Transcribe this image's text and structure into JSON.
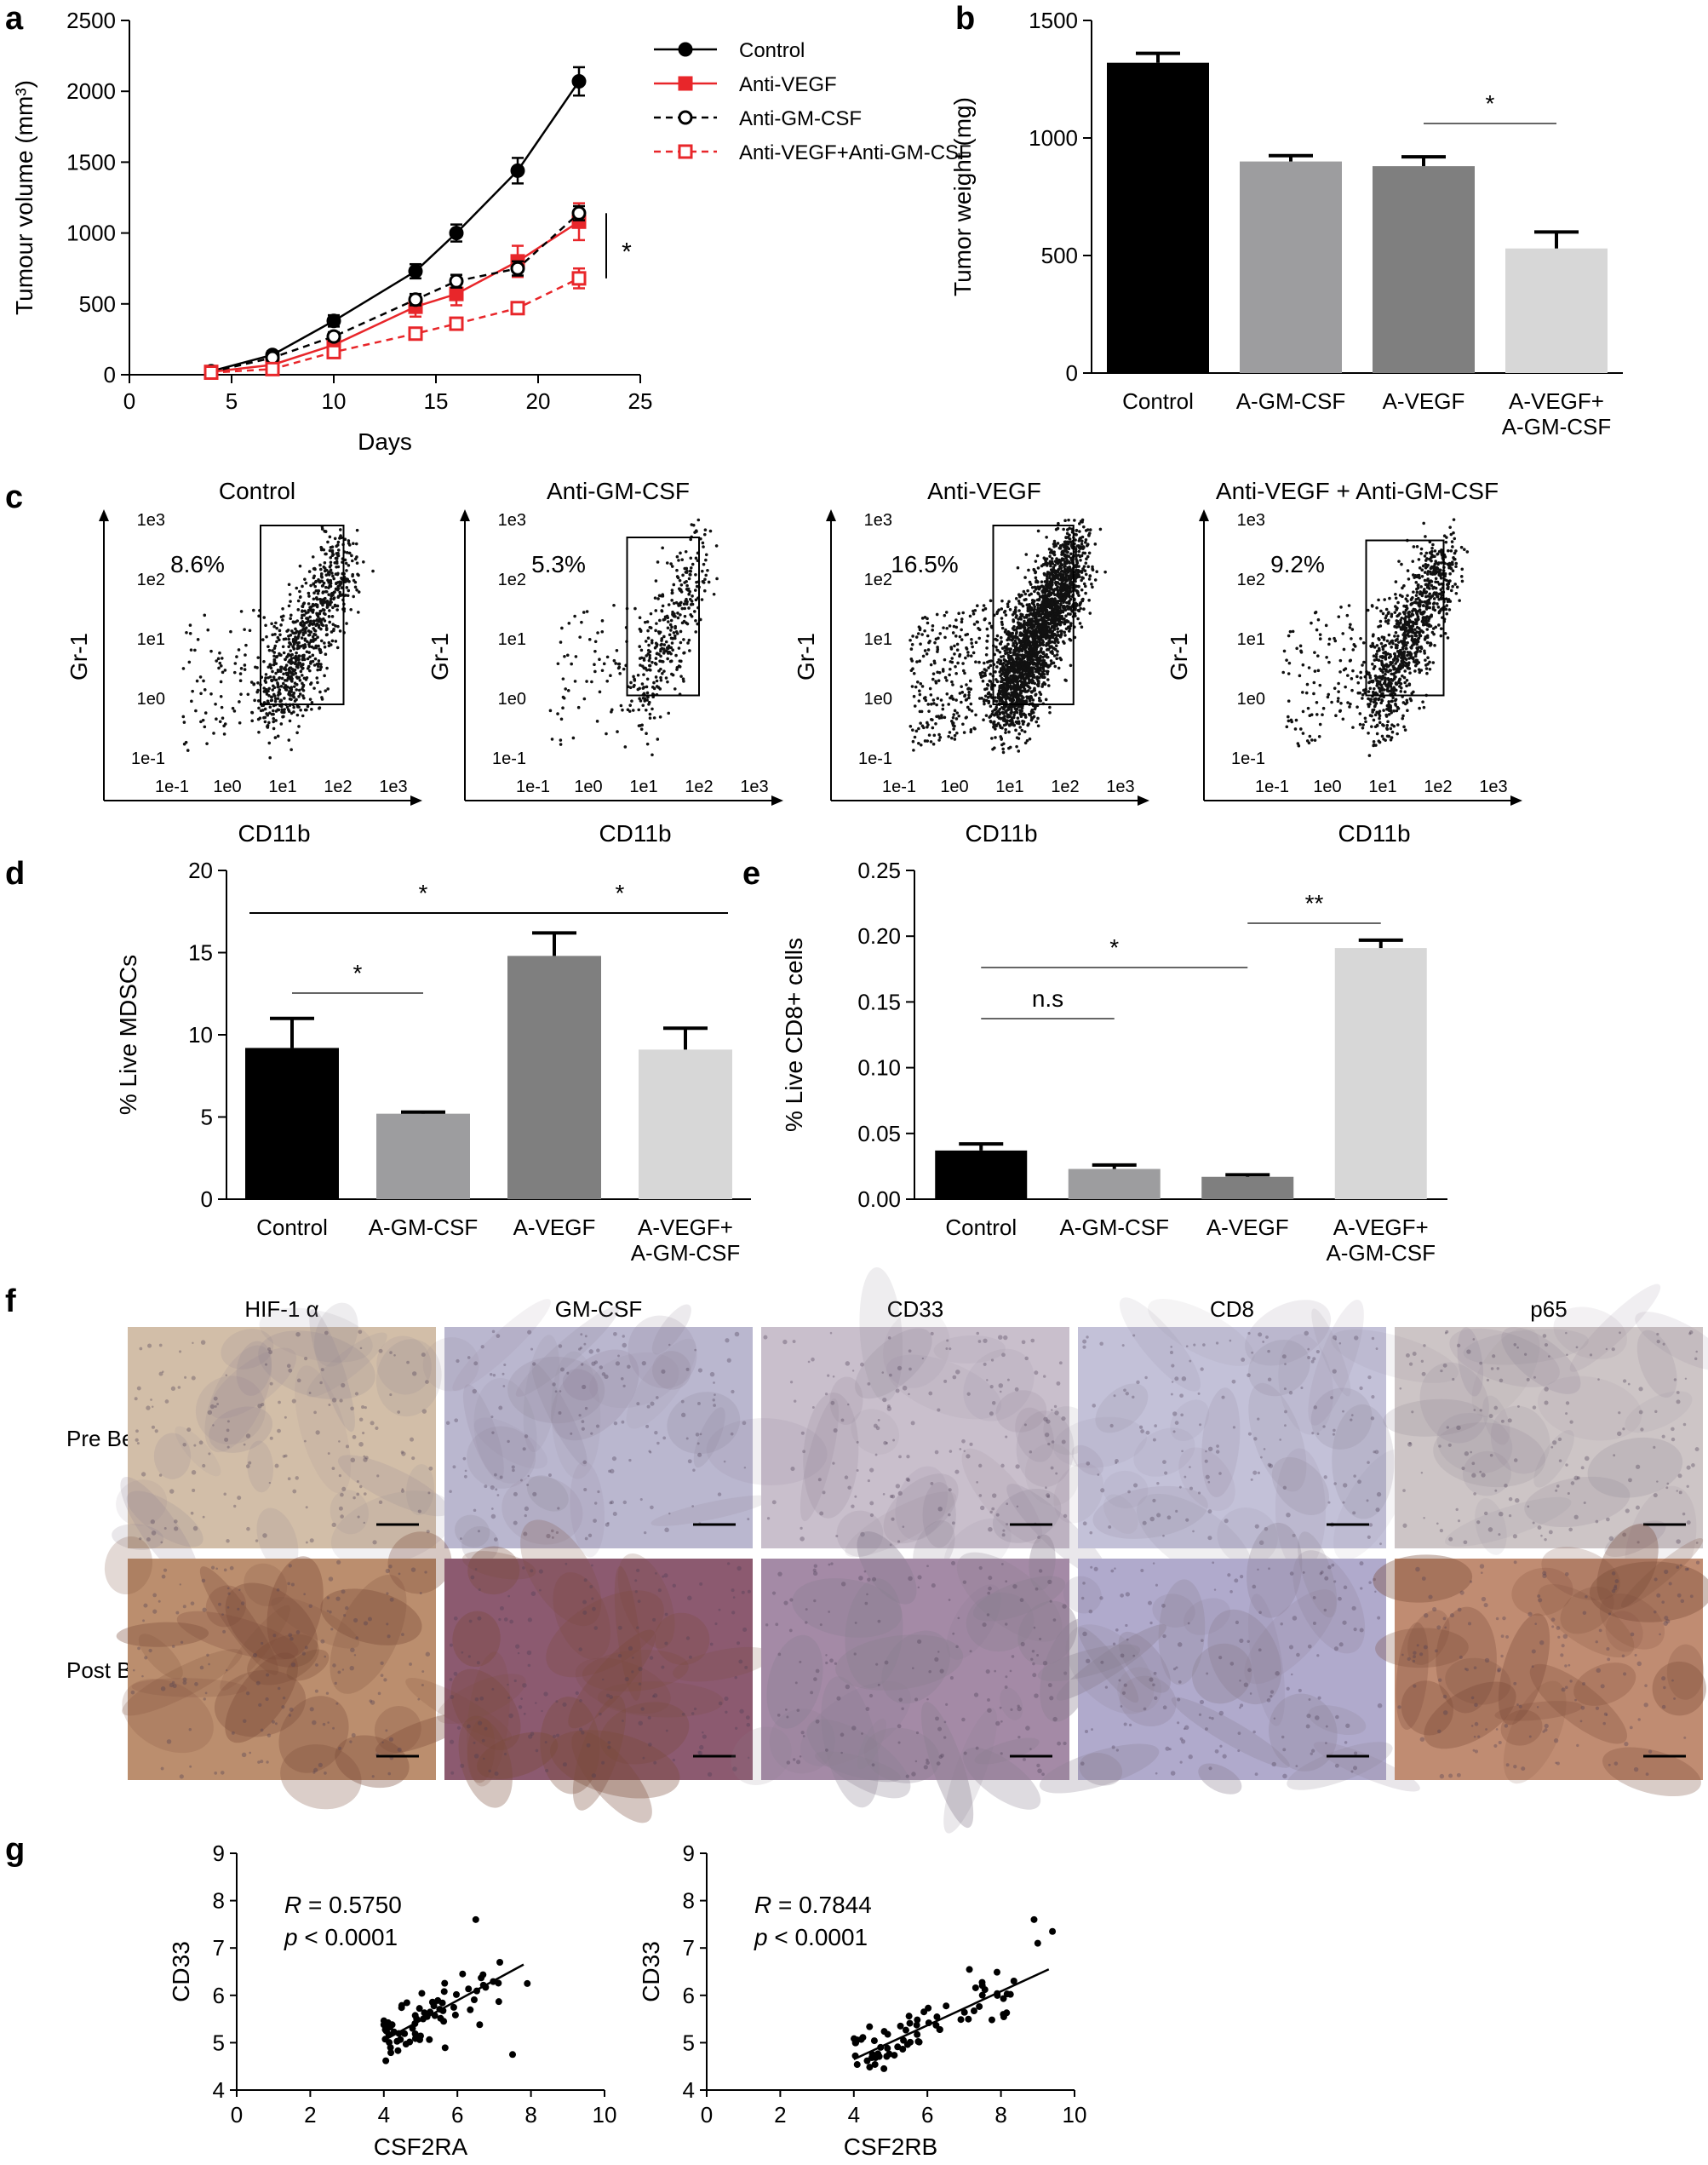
{
  "panel_labels": [
    "a",
    "b",
    "c",
    "d",
    "e",
    "f",
    "g"
  ],
  "chart_data": [
    {
      "id": "a",
      "type": "line",
      "xlabel": "Days",
      "ylabel": "Tumour volume (mm³)",
      "xlim": [
        0,
        25
      ],
      "ylim": [
        0,
        2500
      ],
      "xticks": [
        "0",
        "5",
        "10",
        "15",
        "20",
        "25"
      ],
      "yticks": [
        "0",
        "500",
        "1000",
        "1500",
        "2000",
        "2500"
      ],
      "legend_position": "top-right",
      "x": [
        4,
        7,
        10,
        14,
        16,
        19,
        22
      ],
      "series": [
        {
          "name": "Control",
          "values": [
            25,
            140,
            380,
            730,
            1000,
            1440,
            2070
          ],
          "errors": [
            15,
            25,
            40,
            50,
            60,
            90,
            100
          ],
          "color": "#000000",
          "dashed": false,
          "marker": "filled-circle"
        },
        {
          "name": "Anti-VEGF",
          "values": [
            20,
            70,
            210,
            480,
            570,
            800,
            1080
          ],
          "errors": [
            10,
            20,
            35,
            70,
            80,
            110,
            130
          ],
          "color": "#e8262a",
          "dashed": false,
          "marker": "filled-square"
        },
        {
          "name": "Anti-GM-CSF",
          "values": [
            20,
            120,
            270,
            530,
            660,
            750,
            1140
          ],
          "errors": [
            10,
            20,
            30,
            40,
            45,
            50,
            50
          ],
          "color": "#000000",
          "dashed": true,
          "marker": "open-circle"
        },
        {
          "name": "Anti-VEGF+Anti-GM-CSF",
          "values": [
            15,
            40,
            160,
            290,
            360,
            470,
            680
          ],
          "errors": [
            8,
            15,
            25,
            25,
            30,
            40,
            70
          ],
          "color": "#e8262a",
          "dashed": true,
          "marker": "open-square"
        }
      ],
      "annotations": [
        "*"
      ]
    },
    {
      "id": "b",
      "type": "bar",
      "ylabel": "Tumor weight (mg)",
      "ylim": [
        0,
        1500
      ],
      "yticks": [
        "0",
        "500",
        "1000",
        "1500"
      ],
      "categories": [
        "Control",
        "A-GM-CSF",
        "A-VEGF",
        "A-VEGF+\nA-GM-CSF"
      ],
      "values": [
        1320,
        900,
        880,
        530
      ],
      "errors": [
        40,
        25,
        40,
        70
      ],
      "colors": [
        "#000000",
        "#9d9d9f",
        "#7f7f7f",
        "#d7d7d7"
      ],
      "significance": [
        {
          "from": 2,
          "to": 3,
          "label": "*"
        }
      ]
    },
    {
      "id": "c",
      "type": "scatter",
      "xlabel": "CD11b",
      "ylabel": "Gr-1",
      "log_scale": true,
      "xticks": [
        "1e-1",
        "1e0",
        "1e1",
        "1e2",
        "1e3"
      ],
      "yticks": [
        "1e-1",
        "1e0",
        "1e1",
        "1e2",
        "1e3"
      ],
      "plots": [
        {
          "title": "Control",
          "gate_percent": "8.6%",
          "gate": {
            "x": [
              0.6,
              2.1
            ],
            "y": [
              -0.1,
              2.9
            ]
          },
          "events": 900
        },
        {
          "title": "Anti-GM-CSF",
          "gate_percent": "5.3%",
          "gate": {
            "x": [
              0.7,
              2.0
            ],
            "y": [
              0.05,
              2.7
            ]
          },
          "events": 420
        },
        {
          "title": "Anti-VEGF",
          "gate_percent": "16.5%",
          "gate": {
            "x": [
              0.7,
              2.15
            ],
            "y": [
              -0.1,
              2.9
            ]
          },
          "events": 2600
        },
        {
          "title": "Anti-VEGF + Anti-GM-CSF",
          "gate_percent": "9.2%",
          "gate": {
            "x": [
              0.7,
              2.1
            ],
            "y": [
              0.05,
              2.65
            ]
          },
          "events": 1100
        }
      ]
    },
    {
      "id": "d",
      "type": "bar",
      "ylabel": "% Live MDSCs",
      "ylim": [
        0,
        20
      ],
      "yticks": [
        "0",
        "5",
        "10",
        "15",
        "20"
      ],
      "categories": [
        "Control",
        "A-GM-CSF",
        "A-VEGF",
        "A-VEGF+\nA-GM-CSF"
      ],
      "values": [
        9.2,
        5.2,
        14.8,
        9.1
      ],
      "errors": [
        1.8,
        0.1,
        1.4,
        1.3
      ],
      "colors": [
        "#000000",
        "#9d9d9f",
        "#7f7f7f",
        "#d7d7d7"
      ],
      "significance": [
        {
          "from": 0,
          "to": 2,
          "label": "*"
        },
        {
          "from": 0,
          "to": 1,
          "label": "*"
        },
        {
          "from": 2,
          "to": 3,
          "label": "*"
        }
      ]
    },
    {
      "id": "e",
      "type": "bar",
      "ylabel": "% Live CD8+ cells",
      "ylim": [
        0,
        0.25
      ],
      "yticks": [
        "0.00",
        "0.05",
        "0.10",
        "0.15",
        "0.20",
        "0.25"
      ],
      "categories": [
        "Control",
        "A-GM-CSF",
        "A-VEGF",
        "A-VEGF+\nA-GM-CSF"
      ],
      "values": [
        0.037,
        0.023,
        0.017,
        0.191
      ],
      "errors": [
        0.005,
        0.003,
        0.0015,
        0.006
      ],
      "colors": [
        "#000000",
        "#9d9d9f",
        "#7f7f7f",
        "#d7d7d7"
      ],
      "significance": [
        {
          "from": 0,
          "to": 1,
          "label": "n.s"
        },
        {
          "from": 0,
          "to": 2,
          "label": "*"
        },
        {
          "from": 2,
          "to": 3,
          "label": "**"
        }
      ]
    },
    {
      "id": "g",
      "type": "scatter",
      "ylabel": "CD33",
      "xlim": [
        0,
        10
      ],
      "ylim": [
        4,
        9
      ],
      "xticks": [
        "0",
        "2",
        "4",
        "6",
        "8",
        "10"
      ],
      "yticks": [
        "4",
        "5",
        "6",
        "7",
        "8",
        "9"
      ],
      "plots": [
        {
          "xlabel": "CSF2RA",
          "R": "0.5750",
          "p": "< 0.0001",
          "fit": {
            "x": [
              4.0,
              7.8
            ],
            "y": [
              5.05,
              6.65
            ]
          },
          "x_range": [
            4.0,
            7.9
          ],
          "slope": 0.42,
          "intercept": 3.37,
          "outliers": [
            [
              7.5,
              4.75
            ],
            [
              7.9,
              6.25
            ],
            [
              6.5,
              7.6
            ],
            [
              4.1,
              5.3
            ]
          ]
        },
        {
          "xlabel": "CSF2RB",
          "R": "0.7844",
          "p": "< 0.0001",
          "fit": {
            "x": [
              4.0,
              9.3
            ],
            "y": [
              4.65,
              6.55
            ]
          },
          "x_range": [
            4.0,
            9.4
          ],
          "slope": 0.36,
          "intercept": 3.2,
          "outliers": [
            [
              8.9,
              7.6
            ],
            [
              9.4,
              7.35
            ],
            [
              9.0,
              7.1
            ]
          ]
        }
      ]
    }
  ],
  "ihc": {
    "columns": [
      "HIF-1 α",
      "GM-CSF",
      "CD33",
      "CD8",
      "p65"
    ],
    "rows": [
      "Pre Bev",
      "Post Bev"
    ],
    "tints": [
      [
        "#d2bea8",
        "#bab7cf",
        "#c9bfcc",
        "#c3c1d8",
        "#cdc5c6"
      ],
      [
        "#bb8e6e",
        "#8c5a70",
        "#a48aa6",
        "#b0aacc",
        "#c08c72"
      ]
    ]
  }
}
